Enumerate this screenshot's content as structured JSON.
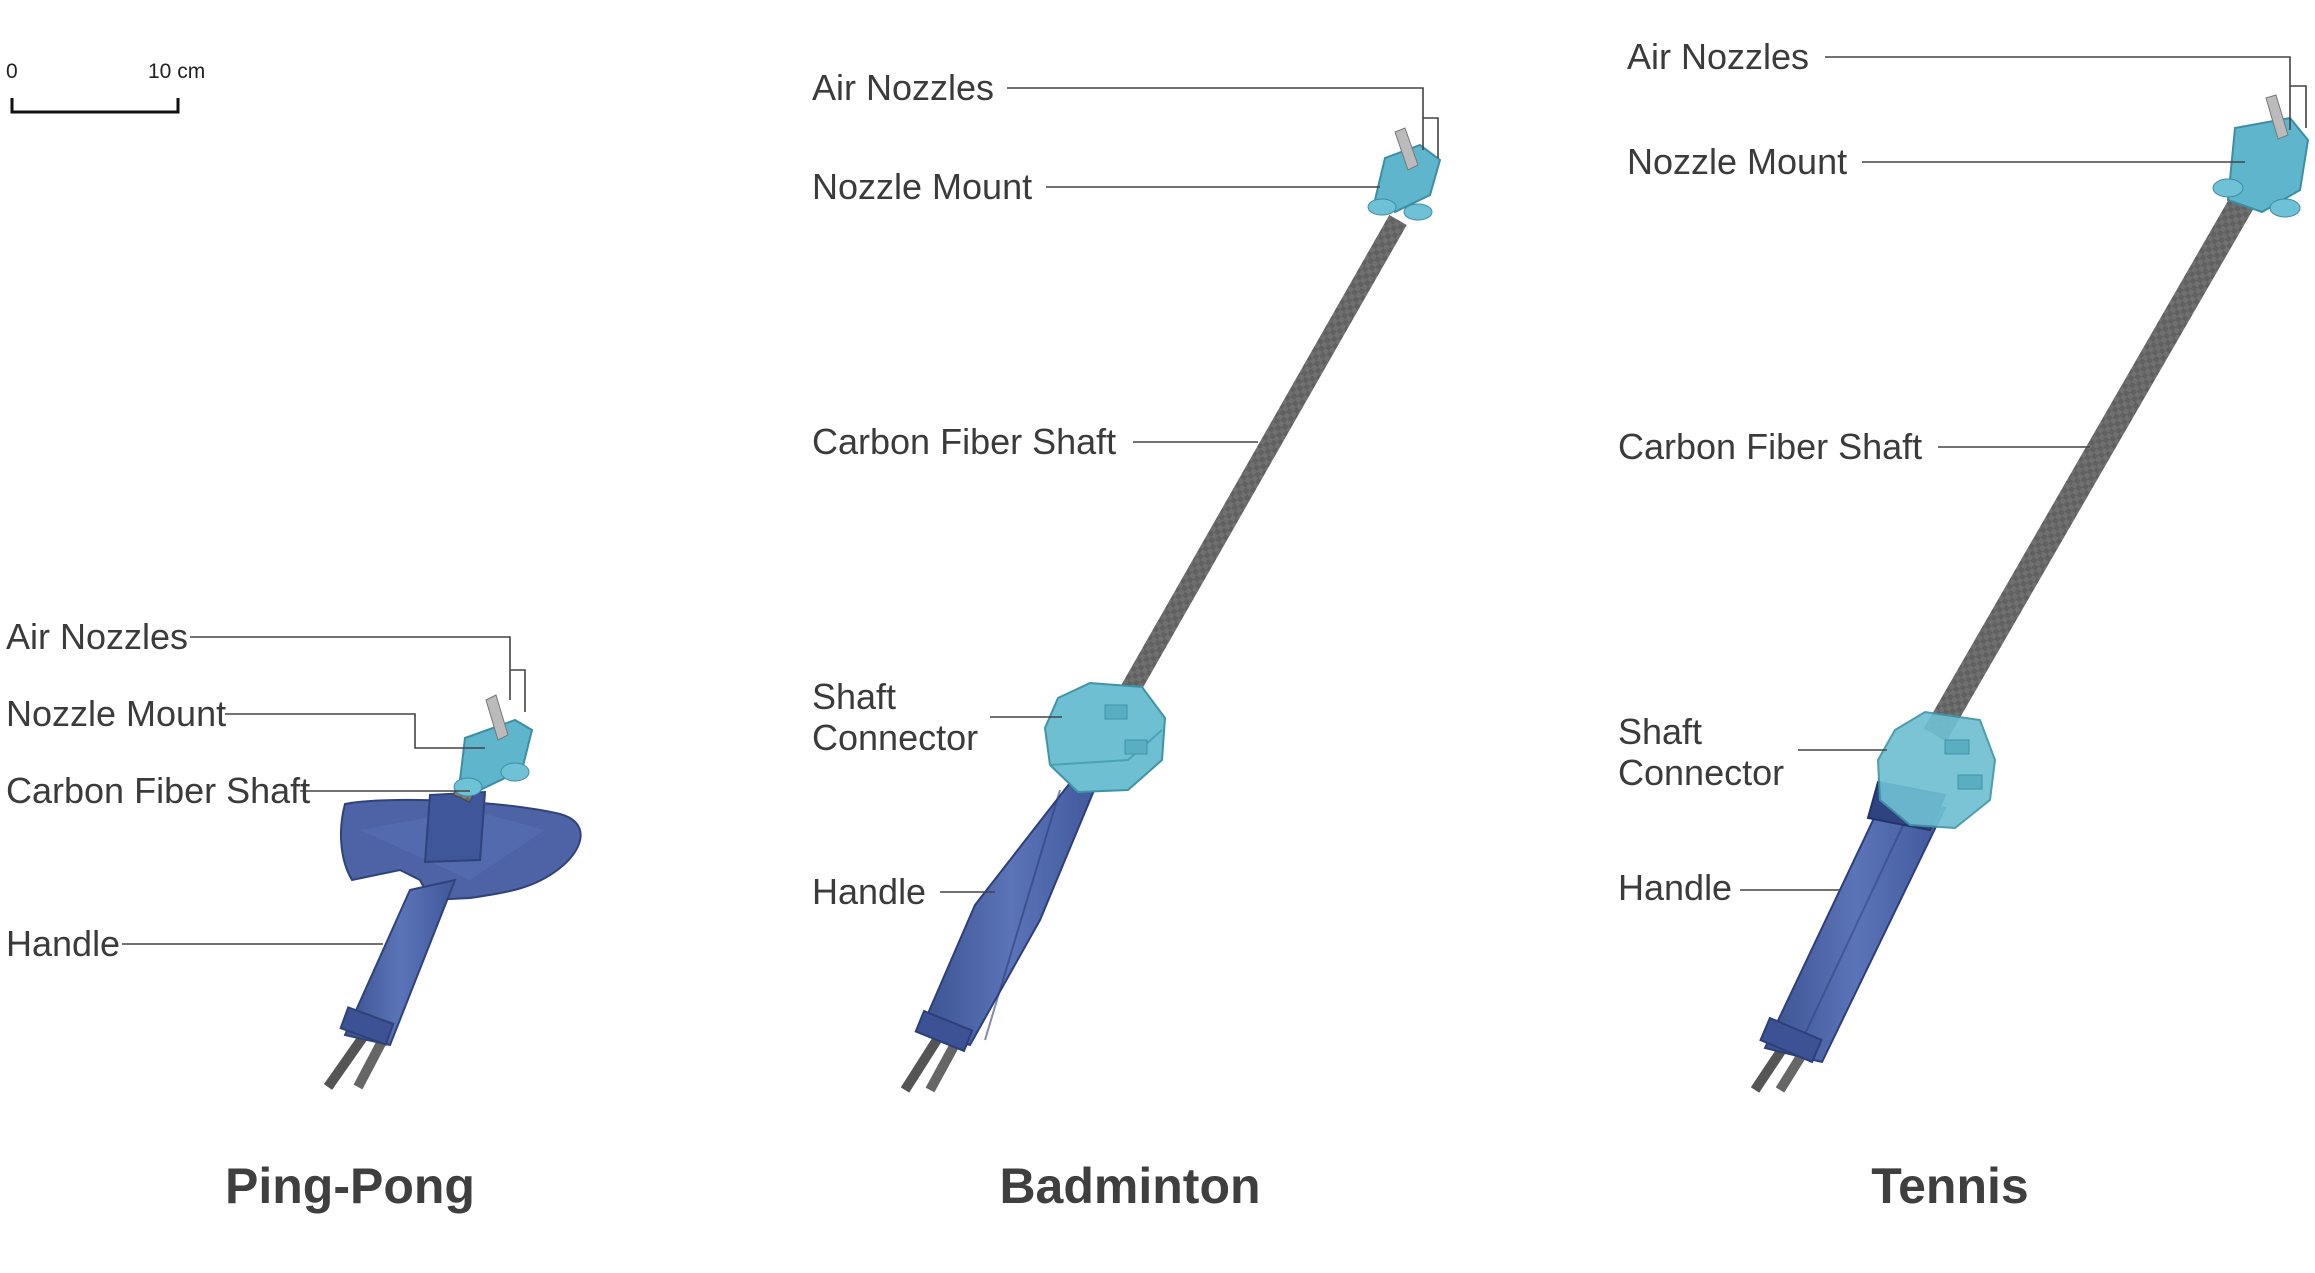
{
  "scale_bar": {
    "start_label": "0",
    "end_label": "10 cm"
  },
  "titles": {
    "ping_pong": "Ping-Pong",
    "badminton": "Badminton",
    "tennis": "Tennis"
  },
  "labels": {
    "air_nozzles": "Air Nozzles",
    "nozzle_mount": "Nozzle Mount",
    "carbon_fiber_shaft": "Carbon Fiber Shaft",
    "shaft_connector_line1": "Shaft",
    "shaft_connector_line2": "Connector",
    "handle": "Handle"
  },
  "colors": {
    "handle": "#4a63a8",
    "connector": "#6fbfd2",
    "nozzle_mount": "#5fb6cc",
    "shaft": "#6a6a6a",
    "leader": "#444444"
  }
}
